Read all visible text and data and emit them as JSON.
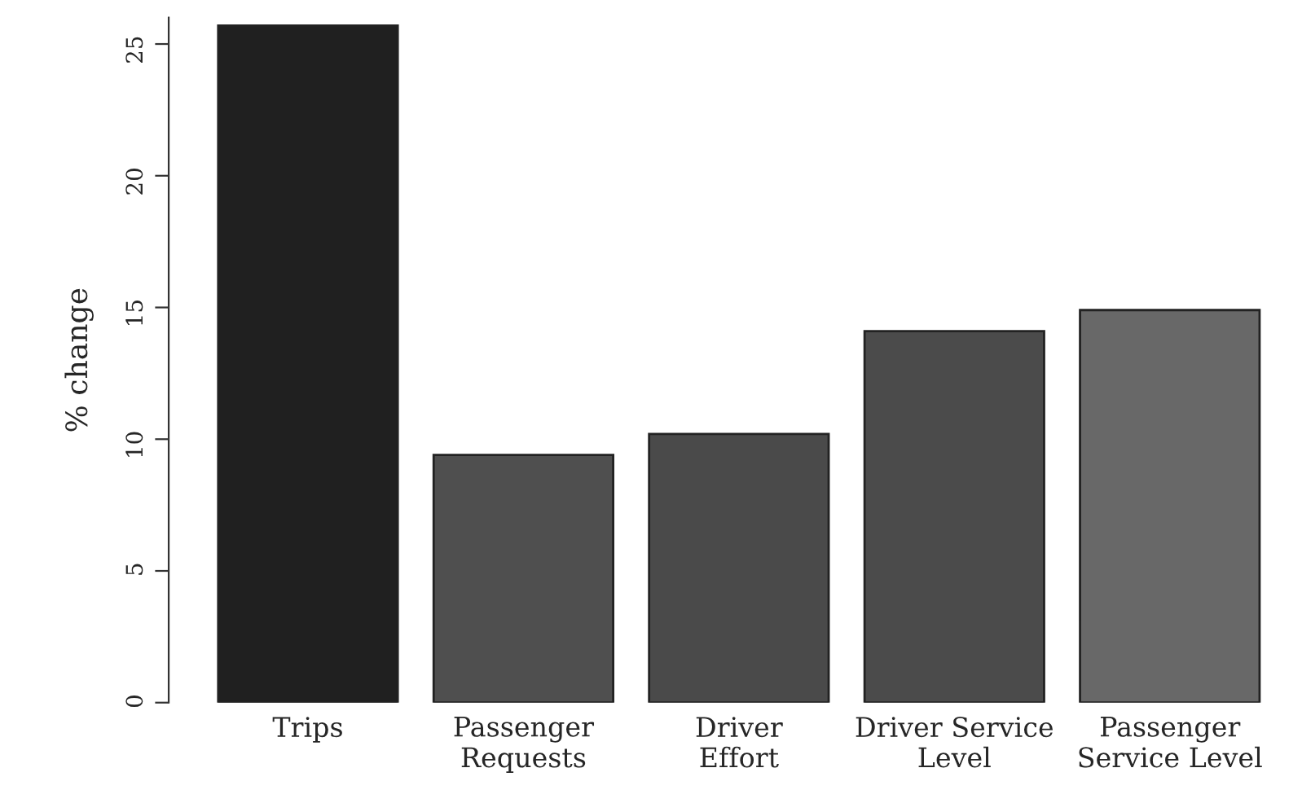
{
  "chart_data": {
    "type": "bar",
    "ylabel": "% change",
    "categories": [
      "Trips",
      "Passenger\nRequests",
      "Driver\nEffort",
      "Driver Service\nLevel",
      "Passenger\nService Level"
    ],
    "values": [
      25.7,
      9.4,
      10.2,
      14.1,
      14.9
    ],
    "colors": [
      "#202020",
      "#4f4f4f",
      "#4a4a4a",
      "#4b4b4b",
      "#686868"
    ],
    "ylim": [
      0,
      26
    ],
    "yticks": [
      0,
      5,
      10,
      15,
      20,
      25
    ],
    "grid": false,
    "legend": false
  }
}
